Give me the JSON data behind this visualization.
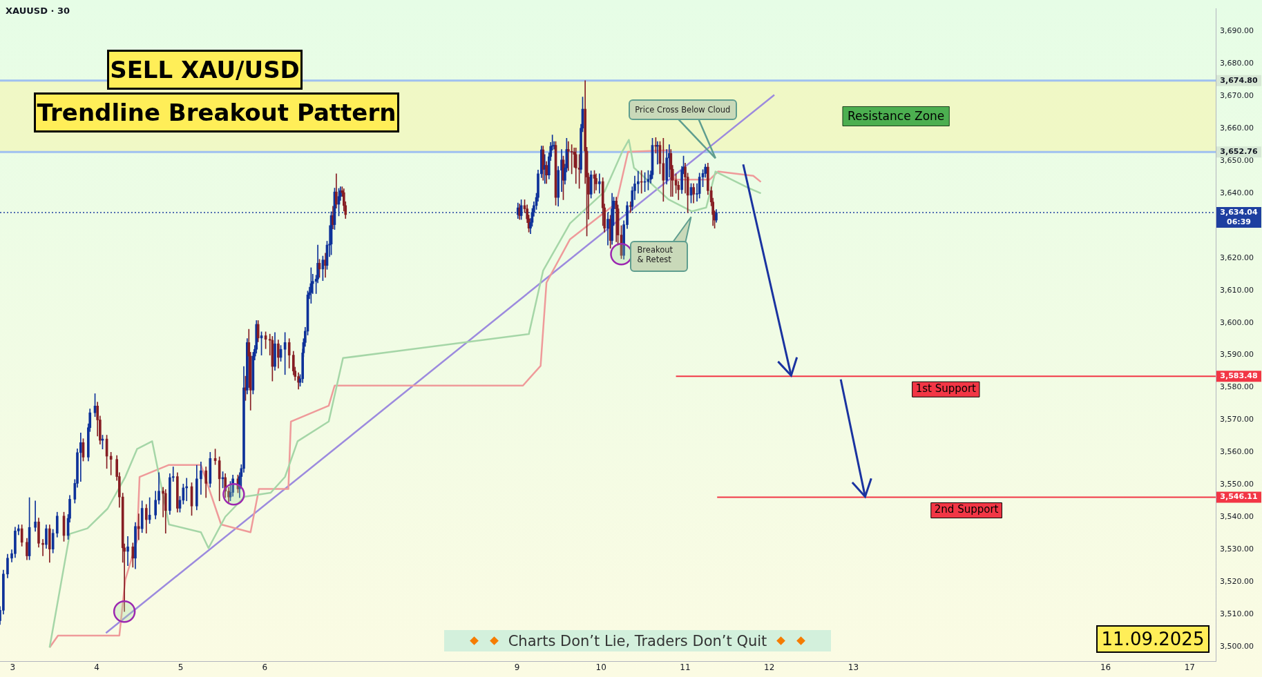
{
  "chart_data": {
    "type": "candlestick",
    "title": "SELL XAU/USD",
    "subtitle": "Trendline Breakout Pattern",
    "annotations": [
      "XAUUSD · 30",
      "Price Cross Below Cloud",
      "Breakout & Retest",
      "Charts Don’t Lie, Traders Don’t Quit",
      "11.09.2025",
      "06:39"
    ],
    "xlim": [
      2.85,
      17.31
    ],
    "xticks": [
      3,
      4,
      5,
      6,
      9,
      10,
      11,
      12,
      13,
      16,
      17
    ],
    "ylim": [
      3495.5,
      3697
    ],
    "yticks": [
      {
        "value": 3500,
        "label": "3,500.00"
      },
      {
        "value": 3510,
        "label": "3,510.00"
      },
      {
        "value": 3520,
        "label": "3,520.00"
      },
      {
        "value": 3530,
        "label": "3,530.00"
      },
      {
        "value": 3540,
        "label": "3,540.00"
      },
      {
        "value": 3550,
        "label": "3,550.00"
      },
      {
        "value": 3560,
        "label": "3,560.00"
      },
      {
        "value": 3570,
        "label": "3,570.00"
      },
      {
        "value": 3580,
        "label": "3,580.00"
      },
      {
        "value": 3590,
        "label": "3,590.00"
      },
      {
        "value": 3600,
        "label": "3,600.00"
      },
      {
        "value": 3610,
        "label": "3,610.00"
      },
      {
        "value": 3620,
        "label": "3,620.00"
      },
      {
        "value": 3640,
        "label": "3,640.00"
      },
      {
        "value": 3650,
        "label": "3,650.00"
      },
      {
        "value": 3660,
        "label": "3,660.00"
      },
      {
        "value": 3670,
        "label": "3,670.00"
      },
      {
        "value": 3680,
        "label": "3,680.00"
      },
      {
        "value": 3690,
        "label": "3,690.00"
      }
    ],
    "ref_lines": [
      {
        "axis": "y",
        "value": 3674.8,
        "label": "3,674.80",
        "color": "#9fc0f0",
        "line_style": "solid"
      },
      {
        "axis": "y",
        "value": 3652.76,
        "label": "3,652.76",
        "color": "#9fc0f0",
        "line_style": "solid"
      },
      {
        "axis": "y",
        "value": 3634.04,
        "label": "3,634.04",
        "color": "#1e3fa0",
        "line_style": "dotted"
      }
    ],
    "bands": [
      {
        "axis": "y",
        "from": 3652.76,
        "to": 3674.8,
        "label": "Resistance Zone",
        "color": "#f1f7bf"
      }
    ],
    "series": [
      {
        "type": "line",
        "color": "#a5d6a7",
        "x": [
          3.44,
          3.68,
          3.89,
          4.13,
          4.34,
          4.48,
          4.66,
          4.86,
          5.24,
          5.33,
          5.53,
          5.76,
          6.07,
          6.24,
          6.39,
          6.76,
          6.93,
          9.14,
          9.31,
          9.63,
          10.04,
          10.25,
          10.33,
          10.39,
          10.8,
          11.08,
          11.25,
          11.36,
          11.74,
          11.9
        ],
        "values": [
          3499.7,
          3534.8,
          3536.5,
          3542.6,
          3552.4,
          3561.0,
          3563.4,
          3537.7,
          3535.3,
          3530.4,
          3540.1,
          3546.3,
          3547.5,
          3552.4,
          3563.4,
          3569.5,
          3589.1,
          3596.5,
          3616.1,
          3630.7,
          3640.5,
          3652.8,
          3656.5,
          3647.9,
          3638.1,
          3634.4,
          3635.6,
          3646.7,
          3641.8,
          3640.0
        ]
      },
      {
        "type": "line",
        "color": "#ef9a9a",
        "x": [
          3.44,
          3.54,
          4.27,
          4.34,
          4.48,
          4.51,
          4.86,
          5.24,
          5.48,
          5.83,
          5.93,
          6.28,
          6.31,
          6.76,
          6.83,
          9.07,
          9.28,
          9.35,
          9.63,
          10.18,
          10.32,
          10.8,
          10.87,
          11.29,
          11.39,
          11.81,
          11.9
        ],
        "values": [
          3499.7,
          3503.4,
          3503.4,
          3520.6,
          3532.8,
          3552.4,
          3556.1,
          3556.1,
          3537.7,
          3535.3,
          3548.7,
          3548.7,
          3569.5,
          3574.4,
          3580.6,
          3580.6,
          3586.7,
          3612.4,
          3625.8,
          3636.9,
          3652.8,
          3653.3,
          3644.2,
          3644.2,
          3646.7,
          3645.4,
          3643.5
        ]
      },
      {
        "type": "line",
        "color": "#9c8ade",
        "x": [
          4.11,
          12.06
        ],
        "values": [
          3504.2,
          3670.4
        ]
      },
      {
        "type": "line",
        "name": "1st Support",
        "color": "#f23645",
        "x": [
          10.89,
          17.31
        ],
        "values": [
          3583.48,
          3583.48
        ],
        "value_labels": [
          null,
          "3,583.48"
        ]
      },
      {
        "type": "line",
        "name": "2nd Support",
        "color": "#f23645",
        "x": [
          11.38,
          17.31
        ],
        "values": [
          3546.11,
          3546.11
        ],
        "value_labels": [
          null,
          "3,546.11"
        ]
      },
      {
        "colors": [
          "#0d3199",
          "#0d3199",
          "#0d3199",
          "#0d3199",
          "#0d3199",
          "#0d3199",
          "#861d23",
          "#861d23",
          "#0d3199",
          "#0d3199",
          "#861d23",
          "#861d23",
          "#0d3199",
          "#861d23",
          "#0d3199",
          "#0d3199",
          "#861d23",
          "#0d3199",
          "#0d3199",
          "#0d3199",
          "#0d3199",
          "#0d3199",
          "#861d23",
          "#0d3199",
          "#0d3199",
          "#0d3199",
          "#861d23",
          "#861d23",
          "#0d3199",
          "#861d23",
          "#861d23",
          "#861d23",
          "#861d23",
          "#861d23",
          "#861d23",
          "#0d3199",
          "#861d23",
          "#0d3199",
          "#861d23",
          "#0d3199",
          "#861d23",
          "#0d3199",
          "#0d3199",
          "#0d3199",
          "#861d23",
          "#861d23",
          "#0d3199",
          "#0d3199",
          "#861d23",
          "#0d3199",
          "#0d3199",
          "#0d3199",
          "#861d23",
          "#0d3199",
          "#0d3199",
          "#861d23",
          "#0d3199",
          "#861d23",
          "#861d23",
          "#0d3199",
          "#861d23",
          "#861d23",
          "#0d3199",
          "#0d3199",
          "#861d23",
          "#0d3199",
          "#0d3199",
          "#0d3199",
          "#861d23",
          "#0d3199",
          "#861d23",
          "#861d23",
          "#0d3199",
          "#0d3199",
          "#0d3199",
          "#861d23",
          "#0d3199",
          "#861d23",
          "#861d23",
          "#861d23",
          "#0d3199",
          "#861d23",
          "#0d3199",
          "#0d3199",
          "#861d23",
          "#861d23",
          "#861d23",
          "#861d23",
          "#0d3199",
          "#0d3199",
          "#0d3199",
          "#0d3199",
          "#0d3199",
          "#0d3199",
          "#0d3199",
          "#0d3199",
          "#0d3199",
          "#0d3199",
          "#861d23",
          "#0d3199",
          "#861d23",
          "#0d3199",
          "#0d3199",
          "#0d3199",
          "#861d23",
          "#0d3199",
          "#861d23",
          "#0d3199",
          "#0d3199",
          "#861d23",
          "#861d23",
          "#861d23",
          "#0d3199",
          "#861d23",
          "#0d3199",
          "#861d23",
          "#861d23",
          "#861d23",
          "#0d3199",
          "#0d3199",
          "#0d3199",
          "#0d3199",
          "#0d3199",
          "#0d3199",
          "#861d23",
          "#0d3199",
          "#861d23",
          "#0d3199",
          "#0d3199",
          "#0d3199",
          "#0d3199",
          "#861d23",
          "#0d3199",
          "#0d3199",
          "#861d23",
          "#0d3199",
          "#0d3199",
          "#861d23",
          "#861d23",
          "#861d23",
          "#861d23",
          "#861d23",
          "#0d3199",
          "#0d3199",
          "#861d23",
          "#861d23",
          "#861d23",
          "#0d3199",
          "#861d23",
          "#861d23",
          "#0d3199",
          "#861d23",
          "#861d23",
          "#0d3199",
          "#861d23",
          "#0d3199",
          "#0d3199",
          "#861d23",
          "#861d23",
          "#861d23",
          "#0d3199",
          "#0d3199",
          "#861d23",
          "#0d3199",
          "#0d3199",
          "#0d3199",
          "#861d23",
          "#0d3199",
          "#0d3199",
          "#0d3199",
          "#0d3199",
          "#861d23",
          "#0d3199",
          "#861d23",
          "#861d23",
          "#0d3199",
          "#0d3199",
          "#861d23",
          "#861d23",
          "#861d23",
          "#861d23",
          "#0d3199",
          "#0d3199",
          "#861d23",
          "#861d23",
          "#0d3199",
          "#861d23",
          "#0d3199",
          "#0d3199",
          "#0d3199",
          "#0d3199",
          "#861d23",
          "#861d23",
          "#861d23",
          "#861d23",
          "#0d3199"
        ],
        "x": [
          2.85,
          2.89,
          2.94,
          2.99,
          3.03,
          3.07,
          3.11,
          3.17,
          3.2,
          3.27,
          3.31,
          3.36,
          3.4,
          3.44,
          3.48,
          3.53,
          3.61,
          3.66,
          3.68,
          3.74,
          3.77,
          3.81,
          3.84,
          3.9,
          3.92,
          3.98,
          4.01,
          4.04,
          4.07,
          4.12,
          4.17,
          4.24,
          4.27,
          4.31,
          4.33,
          4.37,
          4.43,
          4.46,
          4.5,
          4.54,
          4.59,
          4.63,
          4.7,
          4.74,
          4.79,
          4.82,
          4.87,
          4.91,
          4.96,
          4.99,
          5.03,
          5.07,
          5.13,
          5.19,
          5.24,
          5.3,
          5.35,
          5.41,
          5.46,
          5.5,
          5.53,
          5.57,
          5.59,
          5.62,
          5.68,
          5.7,
          5.72,
          5.75,
          5.77,
          5.79,
          5.81,
          5.83,
          5.86,
          5.88,
          5.9,
          5.92,
          5.96,
          6.01,
          6.06,
          6.09,
          6.12,
          6.16,
          6.19,
          6.24,
          6.29,
          6.34,
          6.36,
          6.4,
          6.42,
          6.45,
          6.46,
          6.48,
          6.51,
          6.53,
          6.55,
          6.57,
          6.61,
          6.63,
          6.65,
          6.69,
          6.72,
          6.74,
          6.77,
          6.79,
          6.81,
          6.83,
          6.85,
          6.88,
          6.9,
          6.92,
          6.94,
          6.96,
          9.01,
          9.03,
          9.05,
          9.09,
          9.12,
          9.14,
          9.16,
          9.18,
          9.2,
          9.23,
          9.25,
          9.29,
          9.31,
          9.33,
          9.35,
          9.38,
          9.4,
          9.42,
          9.44,
          9.46,
          9.49,
          9.53,
          9.55,
          9.57,
          9.59,
          9.61,
          9.65,
          9.68,
          9.7,
          9.74,
          9.76,
          9.78,
          9.81,
          9.83,
          9.85,
          9.88,
          9.92,
          9.94,
          9.98,
          10.02,
          10.04,
          10.08,
          10.11,
          10.13,
          10.15,
          10.18,
          10.2,
          10.24,
          10.27,
          10.31,
          10.35,
          10.37,
          10.4,
          10.44,
          10.48,
          10.52,
          10.56,
          10.59,
          10.61,
          10.65,
          10.67,
          10.7,
          10.74,
          10.78,
          10.81,
          10.83,
          10.85,
          10.89,
          10.92,
          10.96,
          10.98,
          11.0,
          11.03,
          11.07,
          11.1,
          11.14,
          11.17,
          11.21,
          11.24,
          11.27,
          11.31,
          11.33,
          11.35,
          11.37
        ],
        "ohlc": [
          [
            3508,
            3512.4,
            3506.8,
            3511.2
          ],
          [
            3511.2,
            3523.6,
            3510,
            3522.4
          ],
          [
            3522.4,
            3528.5,
            3521.2,
            3527.3
          ],
          [
            3527.3,
            3529.9,
            3526.1,
            3528.7
          ],
          [
            3528.7,
            3536.9,
            3527.5,
            3535.7
          ],
          [
            3535.7,
            3537.6,
            3534.5,
            3536.4
          ],
          [
            3536.4,
            3537.6,
            3531,
            3532.2
          ],
          [
            3532.2,
            3533.4,
            3526.8,
            3528
          ],
          [
            3528,
            3546,
            3526.8,
            3536.8
          ],
          [
            3536.8,
            3545,
            3535.6,
            3538.5
          ],
          [
            3538.5,
            3539.7,
            3530.7,
            3531.9
          ],
          [
            3531.9,
            3533.1,
            3528,
            3531.5
          ],
          [
            3531.5,
            3537.6,
            3530.3,
            3536.4
          ],
          [
            3536.4,
            3537.6,
            3526,
            3530.1
          ],
          [
            3530.1,
            3536.2,
            3528.9,
            3535
          ],
          [
            3535,
            3541.5,
            3533.8,
            3540.3
          ],
          [
            3540.3,
            3541.5,
            3532.5,
            3534.3
          ],
          [
            3534.3,
            3540.8,
            3533.1,
            3539.6
          ],
          [
            3539.6,
            3546.7,
            3538.4,
            3545.5
          ],
          [
            3545.5,
            3551.6,
            3544.3,
            3550.4
          ],
          [
            3550.4,
            3561.1,
            3549.2,
            3559.9
          ],
          [
            3559.9,
            3566,
            3551,
            3563
          ],
          [
            3563,
            3564.2,
            3557.3,
            3558.5
          ],
          [
            3558.5,
            3568.8,
            3557.3,
            3567.6
          ],
          [
            3567.6,
            3573.4,
            3566.4,
            3572.2
          ],
          [
            3572.2,
            3578.1,
            3571,
            3574.3
          ],
          [
            3574.3,
            3575.5,
            3565,
            3570
          ],
          [
            3570,
            3571.2,
            3562.5,
            3563.7
          ],
          [
            3563.7,
            3565.3,
            3561,
            3564.1
          ],
          [
            3564.1,
            3565.3,
            3555,
            3558.8
          ],
          [
            3558.8,
            3560,
            3553,
            3557.8
          ],
          [
            3557.8,
            3559,
            3551.3,
            3552.5
          ],
          [
            3552.5,
            3553.7,
            3543,
            3546.2
          ],
          [
            3546.2,
            3547.4,
            3526,
            3530.5
          ],
          [
            3530.5,
            3531.7,
            3510.8,
            3529.4
          ],
          [
            3529.4,
            3534,
            3525,
            3530.8
          ],
          [
            3530.8,
            3532,
            3524.5,
            3527.3
          ],
          [
            3527.3,
            3538.3,
            3524,
            3537.1
          ],
          [
            3537.1,
            3541,
            3533,
            3536.4
          ],
          [
            3536.4,
            3545,
            3535.2,
            3542.7
          ],
          [
            3542.7,
            3543.9,
            3535,
            3539.2
          ],
          [
            3539.2,
            3546,
            3538,
            3540.6
          ],
          [
            3540.6,
            3548,
            3539.4,
            3545.2
          ],
          [
            3545.2,
            3553.7,
            3544,
            3548
          ],
          [
            3548,
            3549.2,
            3540,
            3547.3
          ],
          [
            3547.3,
            3548.5,
            3535,
            3542
          ],
          [
            3542,
            3553.4,
            3540.8,
            3552.2
          ],
          [
            3552.2,
            3555.5,
            3551,
            3552.5
          ],
          [
            3552.5,
            3553.7,
            3541.5,
            3542.7
          ],
          [
            3542.7,
            3546.4,
            3541.5,
            3545.2
          ],
          [
            3545.2,
            3550.2,
            3544,
            3549
          ],
          [
            3549,
            3552,
            3545,
            3549.4
          ],
          [
            3549.4,
            3550.6,
            3540.5,
            3543.4
          ],
          [
            3543.4,
            3556,
            3542.2,
            3551.8
          ],
          [
            3551.8,
            3557,
            3547,
            3554.3
          ],
          [
            3554.3,
            3555.5,
            3546,
            3550.4
          ],
          [
            3550.4,
            3560,
            3549.2,
            3558.1
          ],
          [
            3558.1,
            3561,
            3556.2,
            3557.4
          ],
          [
            3557.4,
            3558.6,
            3545,
            3551.8
          ],
          [
            3551.8,
            3554,
            3549,
            3552.2
          ],
          [
            3552.2,
            3553.4,
            3546,
            3548
          ],
          [
            3548,
            3549.2,
            3544.5,
            3546.2
          ],
          [
            3546.2,
            3551,
            3545,
            3547.6
          ],
          [
            3547.6,
            3553,
            3546.4,
            3551.8
          ],
          [
            3551.8,
            3553,
            3547.5,
            3548.7
          ],
          [
            3548.7,
            3553.7,
            3546,
            3552.5
          ],
          [
            3552.5,
            3556.2,
            3549,
            3555
          ],
          [
            3555,
            3586.5,
            3553.8,
            3579.9
          ],
          [
            3579.9,
            3583.5,
            3576,
            3579.2
          ],
          [
            3579.2,
            3595.1,
            3578,
            3593.9
          ],
          [
            3593.9,
            3598,
            3580,
            3589.7
          ],
          [
            3589.7,
            3590.9,
            3573,
            3579.2
          ],
          [
            3579.2,
            3590.9,
            3578,
            3589.7
          ],
          [
            3589.7,
            3593,
            3588.5,
            3591.8
          ],
          [
            3591.8,
            3600.7,
            3590.6,
            3599.5
          ],
          [
            3599.5,
            3600.7,
            3594.1,
            3595.3
          ],
          [
            3595.3,
            3597.2,
            3590,
            3596
          ],
          [
            3596,
            3597.2,
            3592,
            3594.9
          ],
          [
            3594.9,
            3596.5,
            3590,
            3594.6
          ],
          [
            3594.6,
            3595.8,
            3582,
            3586.5
          ],
          [
            3586.5,
            3597,
            3585.3,
            3593.5
          ],
          [
            3593.5,
            3594.7,
            3586,
            3589.3
          ],
          [
            3589.3,
            3593,
            3588.1,
            3591.8
          ],
          [
            3591.8,
            3597,
            3584,
            3593.9
          ],
          [
            3593.9,
            3595.1,
            3586,
            3590
          ],
          [
            3590,
            3591.2,
            3583.9,
            3585.1
          ],
          [
            3585.1,
            3586.3,
            3582.2,
            3583.4
          ],
          [
            3583.4,
            3584.6,
            3579.5,
            3581.6
          ],
          [
            3581.6,
            3584,
            3580.4,
            3582.7
          ],
          [
            3582.7,
            3591.9,
            3581.5,
            3590.7
          ],
          [
            3590.7,
            3595.1,
            3589.5,
            3593.9
          ],
          [
            3593.9,
            3598.6,
            3592.7,
            3597.4
          ],
          [
            3597.4,
            3609.8,
            3596.2,
            3608.6
          ],
          [
            3608.6,
            3611,
            3607.4,
            3609.3
          ],
          [
            3609.3,
            3617,
            3606,
            3612.1
          ],
          [
            3612.1,
            3615,
            3609,
            3612.8
          ],
          [
            3612.8,
            3614.7,
            3609,
            3613.5
          ],
          [
            3613.5,
            3624,
            3612.3,
            3618.4
          ],
          [
            3618.4,
            3619.6,
            3614,
            3616.6
          ],
          [
            3616.6,
            3620.6,
            3613,
            3619.4
          ],
          [
            3619.4,
            3621.5,
            3614,
            3617.7
          ],
          [
            3617.7,
            3625.2,
            3616.5,
            3624
          ],
          [
            3624,
            3630,
            3620.4,
            3624.3
          ],
          [
            3624.3,
            3634.3,
            3621,
            3633.1
          ],
          [
            3633.1,
            3636,
            3629,
            3630.3
          ],
          [
            3630.3,
            3641.6,
            3628.8,
            3640.4
          ],
          [
            3640.4,
            3646,
            3635.4,
            3636.6
          ],
          [
            3636.6,
            3641.5,
            3633,
            3639
          ],
          [
            3639,
            3642,
            3637.8,
            3640.8
          ],
          [
            3640.8,
            3642,
            3639,
            3640.2
          ],
          [
            3640.2,
            3641.4,
            3634.5,
            3636.2
          ],
          [
            3636.2,
            3637.4,
            3632.2,
            3633.4
          ],
          [
            3633.4,
            3637,
            3632.2,
            3635.5
          ],
          [
            3635.5,
            3636.7,
            3631.9,
            3633.1
          ],
          [
            3633.1,
            3638,
            3631.9,
            3636.2
          ],
          [
            3636.2,
            3638,
            3634,
            3635.2
          ],
          [
            3635.2,
            3636.4,
            3630.9,
            3632.1
          ],
          [
            3632.1,
            3633.3,
            3628,
            3629.2
          ],
          [
            3629.2,
            3632.2,
            3627.5,
            3631
          ],
          [
            3631,
            3635.3,
            3629.8,
            3634.1
          ],
          [
            3634.1,
            3637.4,
            3632.9,
            3636.2
          ],
          [
            3636.2,
            3640,
            3635,
            3638.7
          ],
          [
            3638.7,
            3647.2,
            3637.5,
            3646
          ],
          [
            3646,
            3654.6,
            3644.8,
            3653.4
          ],
          [
            3653.4,
            3654.6,
            3644,
            3647.4
          ],
          [
            3647.4,
            3652,
            3643,
            3648.6
          ],
          [
            3648.6,
            3649.8,
            3643,
            3645.6
          ],
          [
            3645.6,
            3652.5,
            3644.4,
            3651.3
          ],
          [
            3651.3,
            3655.7,
            3650.1,
            3654.5
          ],
          [
            3654.5,
            3658,
            3653.3,
            3654.6
          ],
          [
            3654.6,
            3656,
            3653.6,
            3654.8
          ],
          [
            3654.8,
            3656,
            3636.3,
            3638.7
          ],
          [
            3638.7,
            3648.3,
            3636,
            3647.1
          ],
          [
            3647.1,
            3653.5,
            3640.5,
            3650.3
          ],
          [
            3650.3,
            3651.5,
            3638,
            3644
          ],
          [
            3644,
            3649,
            3642.8,
            3647.8
          ],
          [
            3647.8,
            3657,
            3646.6,
            3653.5
          ],
          [
            3653.5,
            3656,
            3647,
            3652.9
          ],
          [
            3652.9,
            3655,
            3646,
            3652.7
          ],
          [
            3652.7,
            3654,
            3648,
            3652
          ],
          [
            3652,
            3654,
            3643,
            3647.8
          ],
          [
            3647.8,
            3652,
            3641.5,
            3647.4
          ],
          [
            3647.4,
            3661.3,
            3646.2,
            3660.1
          ],
          [
            3660.1,
            3669.7,
            3659,
            3666
          ],
          [
            3666,
            3674.8,
            3643,
            3653
          ],
          [
            3653,
            3654.2,
            3626.8,
            3645
          ],
          [
            3645,
            3646.2,
            3632,
            3639.7
          ],
          [
            3639.7,
            3646.9,
            3638.5,
            3645.7
          ],
          [
            3645.7,
            3647,
            3640,
            3644.6
          ],
          [
            3644.6,
            3646,
            3641,
            3642.9
          ],
          [
            3642.9,
            3646,
            3640,
            3643.6
          ],
          [
            3643.6,
            3644.8,
            3630,
            3635.5
          ],
          [
            3635.5,
            3636.7,
            3628,
            3629.2
          ],
          [
            3629.2,
            3634,
            3624,
            3632
          ],
          [
            3632,
            3633.2,
            3623,
            3625.4
          ],
          [
            3625.4,
            3640,
            3624.2,
            3635.2
          ],
          [
            3635.2,
            3638.8,
            3630,
            3637.6
          ],
          [
            3637.6,
            3638.8,
            3625,
            3635.2
          ],
          [
            3635.2,
            3636.4,
            3624,
            3627.1
          ],
          [
            3627.1,
            3630,
            3619.8,
            3620.8
          ],
          [
            3620.8,
            3631.5,
            3619.6,
            3630.3
          ],
          [
            3630.3,
            3637.4,
            3629.1,
            3636.2
          ],
          [
            3636.2,
            3637.4,
            3634,
            3635.9
          ],
          [
            3635.9,
            3642,
            3634.7,
            3640.8
          ],
          [
            3640.8,
            3645.3,
            3638,
            3642.9
          ],
          [
            3642.9,
            3646.8,
            3640,
            3643.6
          ],
          [
            3643.6,
            3647,
            3640,
            3643.4
          ],
          [
            3643.4,
            3646.4,
            3640.5,
            3643.6
          ],
          [
            3643.6,
            3647,
            3641,
            3644.3
          ],
          [
            3644.3,
            3646.9,
            3643.1,
            3645.7
          ],
          [
            3645.7,
            3657,
            3644.5,
            3654.8
          ],
          [
            3654.8,
            3657.2,
            3652.4,
            3654.5
          ],
          [
            3654.5,
            3656,
            3649,
            3654.8
          ],
          [
            3654.8,
            3656,
            3646,
            3649.2
          ],
          [
            3649.2,
            3657,
            3637.5,
            3644
          ],
          [
            3644,
            3653.5,
            3642.8,
            3650.9
          ],
          [
            3650.9,
            3655,
            3645,
            3652.3
          ],
          [
            3652.3,
            3653.5,
            3639,
            3647.4
          ],
          [
            3647.4,
            3648.6,
            3639,
            3644
          ],
          [
            3644,
            3646,
            3640,
            3642.5
          ],
          [
            3642.5,
            3643.7,
            3638,
            3641.1
          ],
          [
            3641.1,
            3648.3,
            3639.9,
            3647.1
          ],
          [
            3647.1,
            3651.5,
            3646,
            3648.1
          ],
          [
            3648.1,
            3649.3,
            3640,
            3645
          ],
          [
            3645,
            3646.2,
            3634,
            3639.4
          ],
          [
            3639.4,
            3643,
            3637,
            3641.8
          ],
          [
            3641.8,
            3643,
            3637,
            3639.7
          ],
          [
            3639.7,
            3643,
            3637.5,
            3639.9
          ],
          [
            3639.9,
            3646.2,
            3638.5,
            3645
          ],
          [
            3645,
            3647.3,
            3642,
            3646.1
          ],
          [
            3646.1,
            3649,
            3644.9,
            3648.1
          ],
          [
            3648.1,
            3649.3,
            3639.6,
            3640.8
          ],
          [
            3640.8,
            3642,
            3636.1,
            3637.3
          ],
          [
            3637.3,
            3638.5,
            3630,
            3633.4
          ],
          [
            3633.4,
            3634.6,
            3629.2,
            3631.7
          ],
          [
            3631.7,
            3635,
            3631,
            3634.04
          ]
        ]
      }
    ]
  }
}
